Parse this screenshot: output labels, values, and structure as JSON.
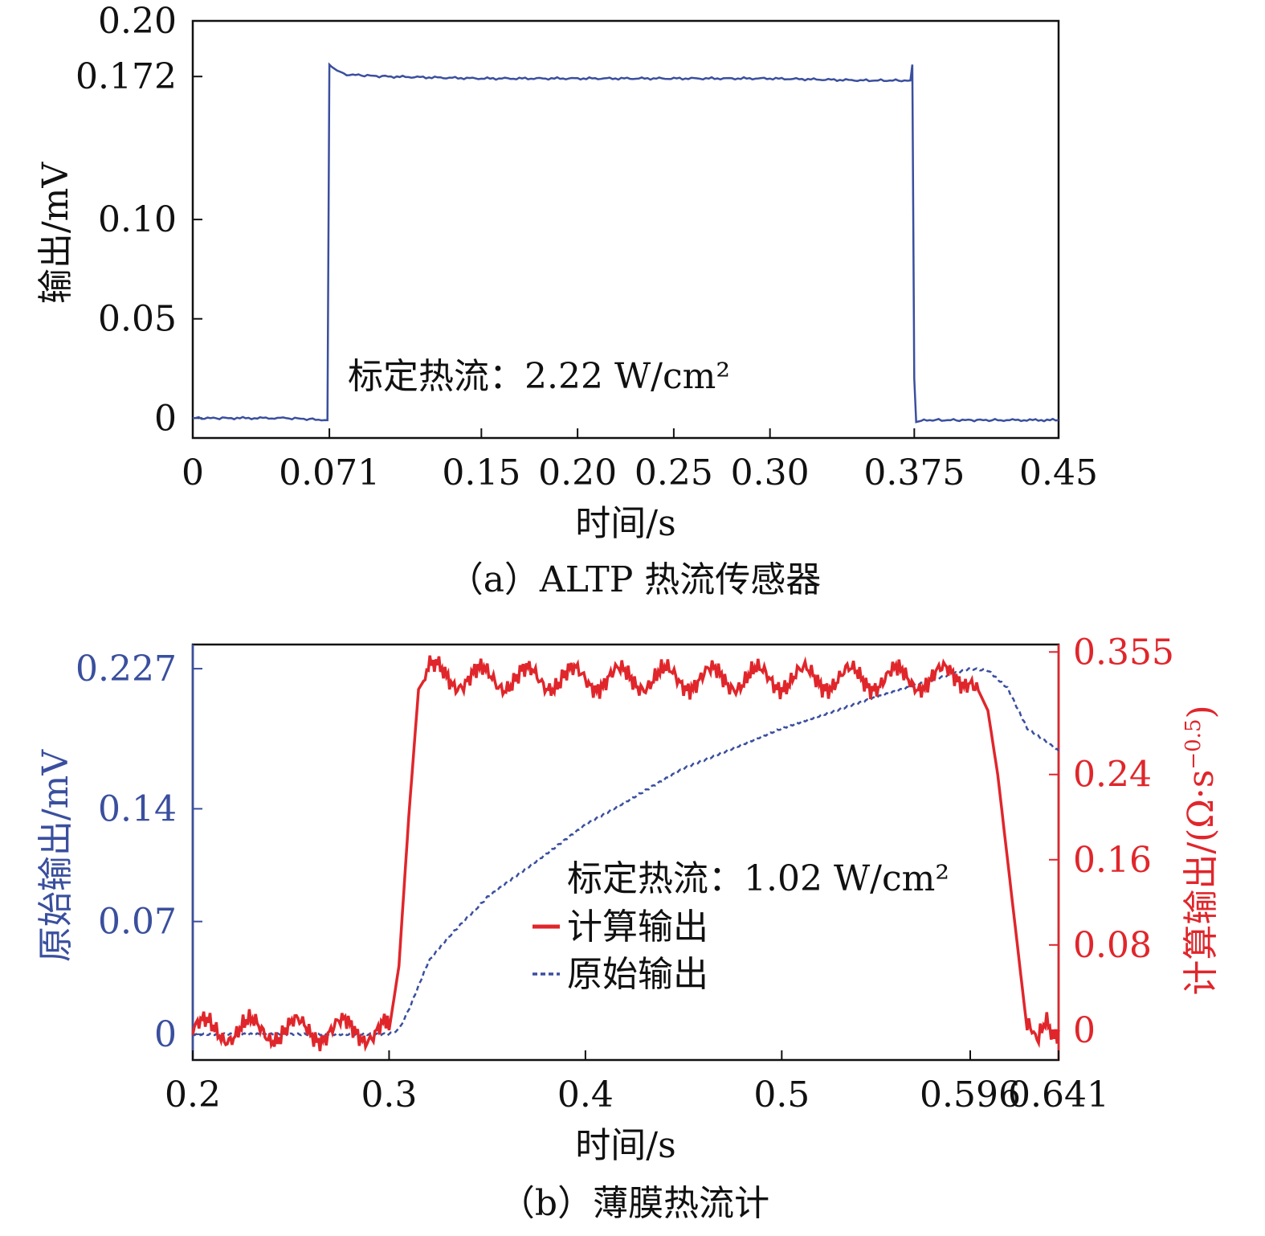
{
  "chart_data": [
    {
      "type": "line",
      "panel": "a",
      "caption": "（a）ALTP 热流传感器",
      "xlabel": "时间/s",
      "ylabel": "输出/mV",
      "xlim": [
        0,
        0.45
      ],
      "ylim": [
        -0.01,
        0.2
      ],
      "xticks": [
        0,
        0.071,
        0.15,
        0.2,
        0.25,
        0.3,
        0.375,
        0.45
      ],
      "xtick_labels": [
        "0",
        "0.071",
        "0.15",
        "0.20",
        "0.25",
        "0.30",
        "0.375",
        "0.45"
      ],
      "yticks": [
        0,
        0.05,
        0.1,
        0.172,
        0.2
      ],
      "ytick_labels": [
        "0",
        "0.05",
        "0.10",
        "0.172",
        "0.20"
      ],
      "annotation": "标定热流：2.22 W/cm²",
      "color": "#3a4f9e",
      "series": [
        {
          "x": [
            0,
            0.02,
            0.05,
            0.07,
            0.071,
            0.072,
            0.075,
            0.08,
            0.1,
            0.15,
            0.2,
            0.25,
            0.3,
            0.35,
            0.373,
            0.374,
            0.375,
            0.376,
            0.38,
            0.4,
            0.42,
            0.45
          ],
          "y": [
            0.0,
            0.0,
            0.0,
            -0.001,
            0.178,
            0.177,
            0.175,
            0.173,
            0.172,
            0.171,
            0.171,
            0.171,
            0.171,
            0.17,
            0.17,
            0.178,
            0.02,
            -0.002,
            -0.001,
            -0.001,
            -0.001,
            -0.001
          ]
        }
      ]
    },
    {
      "type": "line",
      "panel": "b",
      "caption": "（b）薄膜热流计",
      "xlabel": "时间/s",
      "ylabel_left": "原始输出/mV",
      "ylabel_right": "计算输出/(Ω·s",
      "ylabel_right_sup": "−0.5",
      "ylabel_right_close": ")",
      "xlim": [
        0.2,
        0.641
      ],
      "ylim_left": [
        -0.016,
        0.242
      ],
      "ylim_right": [
        -0.028,
        0.362
      ],
      "xticks": [
        0.2,
        0.3,
        0.4,
        0.5,
        0.596,
        0.641
      ],
      "xtick_labels": [
        "0.2",
        "0.3",
        "0.4",
        "0.5",
        "0.596",
        "0.641"
      ],
      "yticks_left": [
        0,
        0.07,
        0.14,
        0.227
      ],
      "ytick_labels_left": [
        "0",
        "0.07",
        "0.14",
        "0.227"
      ],
      "yticks_right": [
        0,
        0.08,
        0.16,
        0.24,
        0.355
      ],
      "ytick_labels_right": [
        "0",
        "0.08",
        "0.16",
        "0.24",
        "0.355"
      ],
      "annotation": "标定热流：1.02 W/cm²",
      "left_color": "#3a4f9e",
      "right_color": "#e0262b",
      "series": [
        {
          "name": "计算输出",
          "axis": "right",
          "color": "#e0262b",
          "style": "solid",
          "x": [
            0.2,
            0.3,
            0.305,
            0.31,
            0.315,
            0.32,
            0.33,
            0.35,
            0.4,
            0.45,
            0.5,
            0.55,
            0.58,
            0.596,
            0.605,
            0.61,
            0.62,
            0.625,
            0.63,
            0.635,
            0.641
          ],
          "y": [
            0.0,
            0.0,
            0.06,
            0.2,
            0.32,
            0.335,
            0.332,
            0.33,
            0.33,
            0.33,
            0.33,
            0.33,
            0.33,
            0.335,
            0.3,
            0.24,
            0.08,
            0.0,
            -0.02,
            0.01,
            0.0
          ]
        },
        {
          "name": "原始输出",
          "axis": "left",
          "color": "#3a4f9e",
          "style": "dashed",
          "x": [
            0.2,
            0.3,
            0.305,
            0.31,
            0.32,
            0.33,
            0.35,
            0.4,
            0.45,
            0.5,
            0.55,
            0.596,
            0.605,
            0.615,
            0.625,
            0.641
          ],
          "y": [
            0.0,
            0.0,
            0.003,
            0.015,
            0.045,
            0.06,
            0.085,
            0.13,
            0.165,
            0.19,
            0.21,
            0.227,
            0.226,
            0.215,
            0.19,
            0.176
          ]
        }
      ]
    }
  ]
}
